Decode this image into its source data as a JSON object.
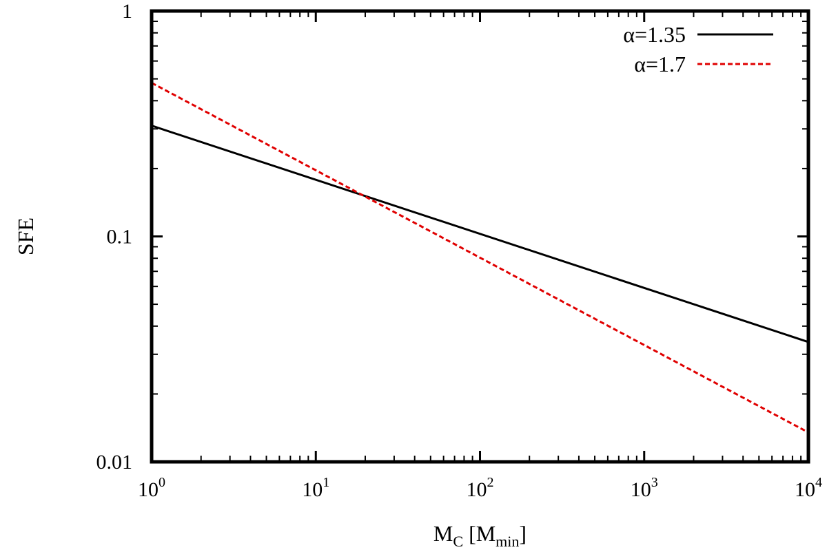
{
  "chart_data": {
    "type": "line",
    "xscale": "log",
    "yscale": "log",
    "xlim": [
      1,
      10000
    ],
    "ylim": [
      0.01,
      1
    ],
    "xlabel": {
      "main": "M",
      "sub": "C",
      "bracket_open": " [M",
      "bracket_sub": "min",
      "bracket_close": "]"
    },
    "ylabel": "SFE",
    "grid": false,
    "legend_position": "top-right",
    "xticks": [
      {
        "value": 1,
        "base": "10",
        "exp": "0"
      },
      {
        "value": 10,
        "base": "10",
        "exp": "1"
      },
      {
        "value": 100,
        "base": "10",
        "exp": "2"
      },
      {
        "value": 1000,
        "base": "10",
        "exp": "3"
      },
      {
        "value": 10000,
        "base": "10",
        "exp": "4"
      }
    ],
    "yticks": [
      {
        "value": 1,
        "label": "1"
      },
      {
        "value": 0.1,
        "label": "0.1"
      },
      {
        "value": 0.01,
        "label": "0.01"
      }
    ],
    "series": [
      {
        "name": "α=1.35",
        "color": "#000000",
        "style": "solid",
        "x": [
          1,
          10000
        ],
        "y": [
          0.31,
          0.034
        ]
      },
      {
        "name": "α=1.7",
        "color": "#e00000",
        "style": "dashed",
        "x": [
          1,
          10000
        ],
        "y": [
          0.48,
          0.0135
        ]
      }
    ]
  }
}
